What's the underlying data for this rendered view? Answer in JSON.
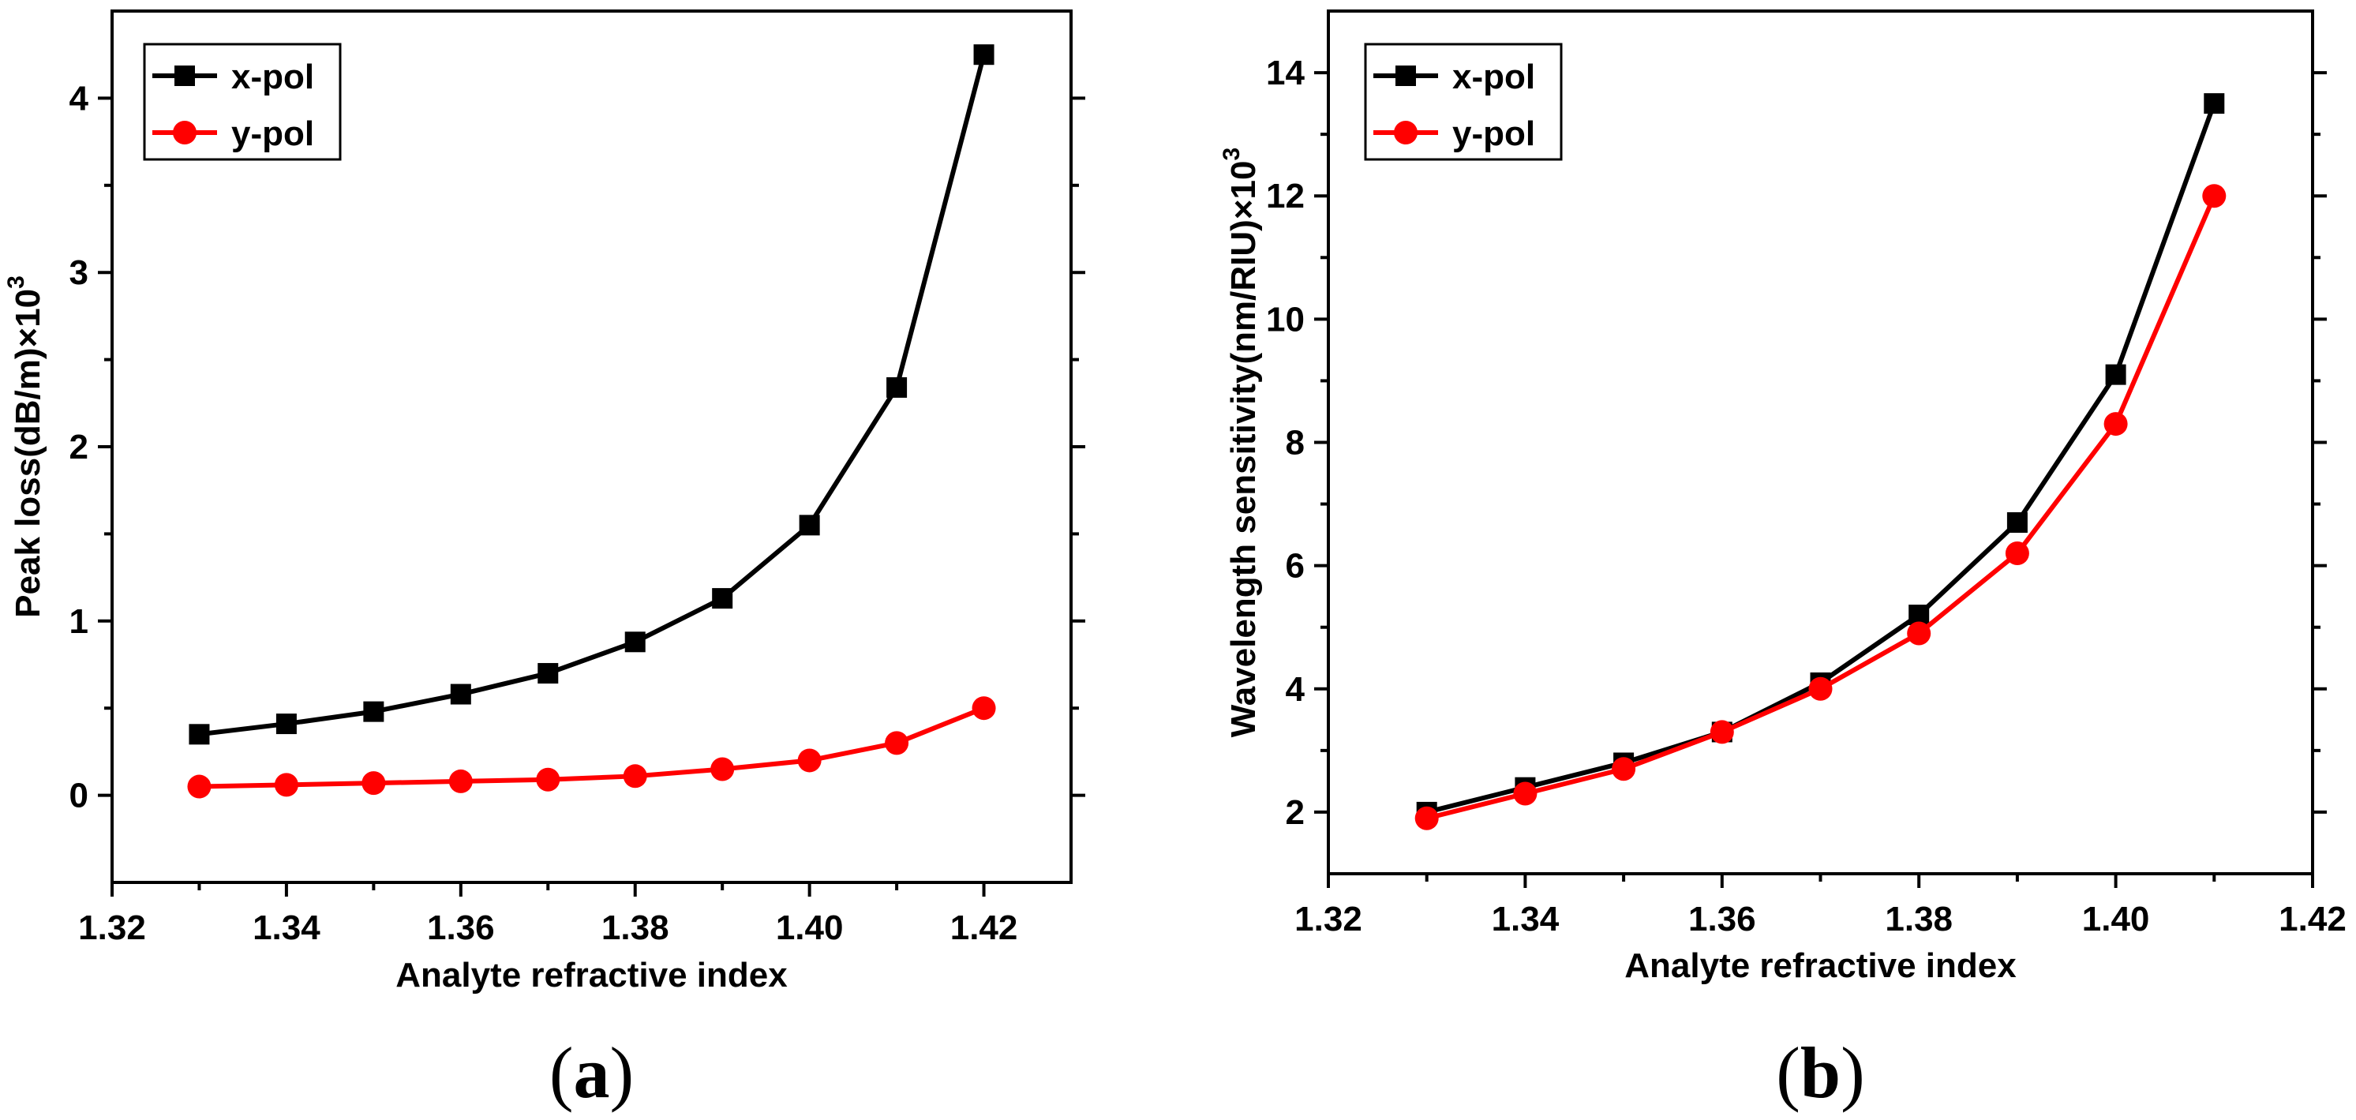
{
  "chart_data": [
    {
      "type": "line",
      "panel_label": {
        "open": "(",
        "letter": "a",
        "close": ")"
      },
      "xlabel": "Analyte refractive index",
      "ylabel": "Peak loss(dB/m)×10",
      "ylabel_superscript": "3",
      "xlim": [
        1.32,
        1.43
      ],
      "ylim": [
        -0.5,
        4.5
      ],
      "xticks": [
        1.32,
        1.34,
        1.36,
        1.38,
        1.4,
        1.42
      ],
      "xtick_labels": [
        "1.32",
        "1.34",
        "1.36",
        "1.38",
        "1.40",
        "1.42"
      ],
      "yticks": [
        0,
        1,
        2,
        3,
        4
      ],
      "ytick_labels": [
        "0",
        "1",
        "2",
        "3",
        "4"
      ],
      "legend_position": "top-left",
      "x": [
        1.33,
        1.34,
        1.35,
        1.36,
        1.37,
        1.38,
        1.39,
        1.4,
        1.41,
        1.42
      ],
      "series": [
        {
          "name": "x-pol",
          "color": "#000000",
          "marker": "square",
          "values": [
            0.35,
            0.41,
            0.48,
            0.58,
            0.7,
            0.88,
            1.13,
            1.55,
            2.34,
            4.25
          ]
        },
        {
          "name": "y-pol",
          "color": "#ff0000",
          "marker": "circle",
          "values": [
            0.05,
            0.06,
            0.07,
            0.08,
            0.09,
            0.11,
            0.15,
            0.2,
            0.3,
            0.5
          ]
        }
      ]
    },
    {
      "type": "line",
      "panel_label": {
        "open": "(",
        "letter": "b",
        "close": ")"
      },
      "xlabel": "Analyte refractive index",
      "ylabel": "Wavelength sensitivity(nm/RIU)×10",
      "ylabel_superscript": "3",
      "xlim": [
        1.32,
        1.42
      ],
      "ylim": [
        1,
        15
      ],
      "xticks": [
        1.32,
        1.34,
        1.36,
        1.38,
        1.4,
        1.42
      ],
      "xtick_labels": [
        "1.32",
        "1.34",
        "1.36",
        "1.38",
        "1.40",
        "1.42"
      ],
      "yticks": [
        2,
        4,
        6,
        8,
        10,
        12,
        14
      ],
      "ytick_labels": [
        "2",
        "4",
        "6",
        "8",
        "10",
        "12",
        "14"
      ],
      "legend_position": "top-left",
      "x": [
        1.33,
        1.34,
        1.35,
        1.36,
        1.37,
        1.38,
        1.39,
        1.4,
        1.41
      ],
      "series": [
        {
          "name": "x-pol",
          "color": "#000000",
          "marker": "square",
          "values": [
            2.0,
            2.4,
            2.8,
            3.3,
            4.1,
            5.2,
            6.7,
            9.1,
            13.5
          ]
        },
        {
          "name": "y-pol",
          "color": "#ff0000",
          "marker": "circle",
          "values": [
            1.9,
            2.3,
            2.7,
            3.3,
            4.0,
            4.9,
            6.2,
            8.3,
            12.0
          ]
        }
      ]
    }
  ]
}
